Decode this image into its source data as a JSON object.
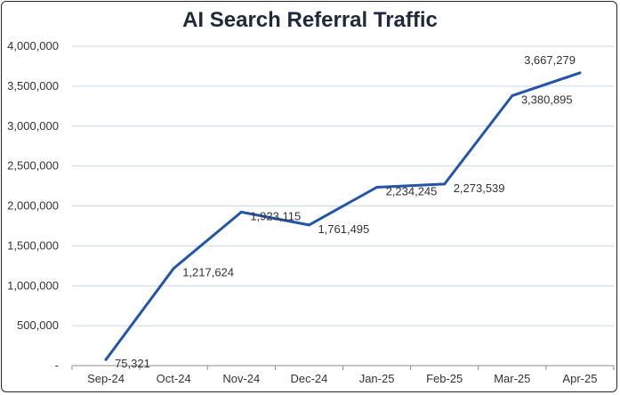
{
  "chart_data": {
    "type": "line",
    "title": "AI Search Referral Traffic",
    "xlabel": "",
    "ylabel": "",
    "categories": [
      "Sep-24",
      "Oct-24",
      "Nov-24",
      "Dec-24",
      "Jan-25",
      "Feb-25",
      "Mar-25",
      "Apr-25"
    ],
    "series": [
      {
        "values": [
          75321,
          1217624,
          1923115,
          1761495,
          2234245,
          2273539,
          3380895,
          3667279
        ],
        "data_labels": [
          "75,321",
          "1,217,624",
          "1,923,115",
          "1,761,495",
          "2,234,245",
          "2,273,539",
          "3,380,895",
          "3,667,279"
        ],
        "color": "#2356a8"
      }
    ],
    "ylim": [
      0,
      4000000
    ],
    "yticks": [
      0,
      500000,
      1000000,
      1500000,
      2000000,
      2500000,
      3000000,
      3500000,
      4000000
    ],
    "ytick_labels": [
      "-",
      "500,000",
      "1,000,000",
      "1,500,000",
      "2,000,000",
      "2,500,000",
      "3,000,000",
      "3,500,000",
      "4,000,000"
    ],
    "grid": true,
    "gridline_color": "#c9d6ea",
    "legend": "none"
  }
}
